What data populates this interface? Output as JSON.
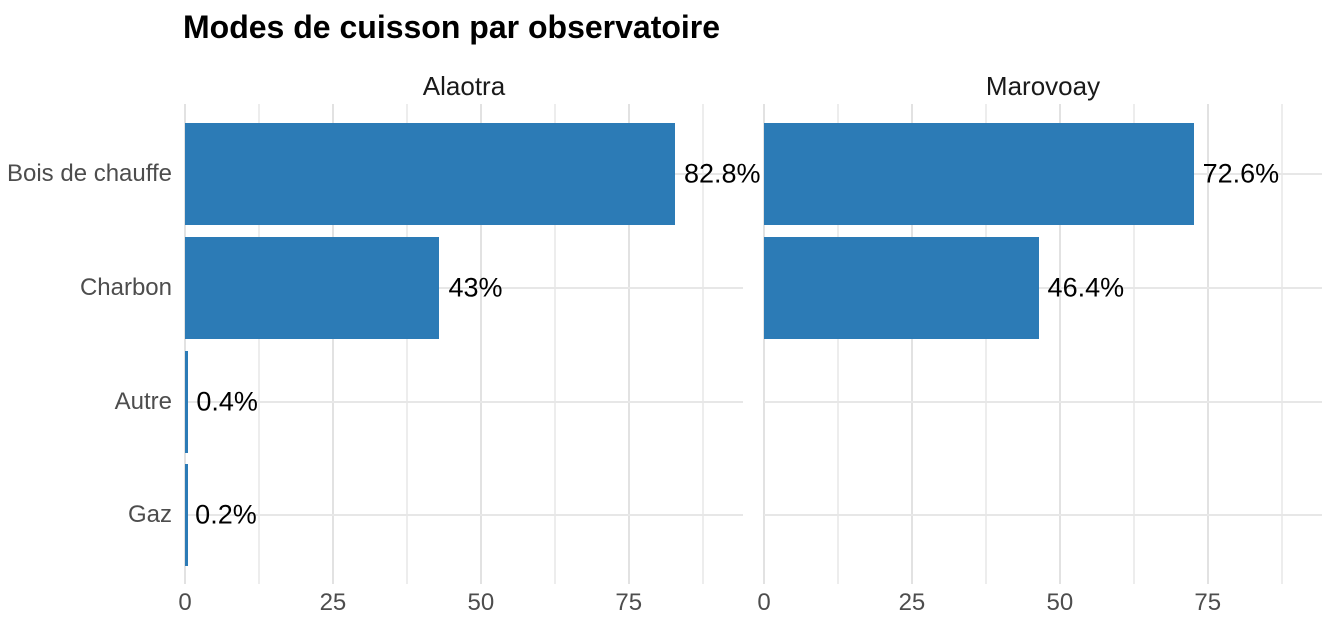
{
  "title": "Modes de cuisson par observatoire",
  "chart_data": {
    "type": "bar",
    "orientation": "horizontal",
    "title": "Modes de cuisson par observatoire",
    "categories": [
      "Bois de chauffe",
      "Charbon",
      "Autre",
      "Gaz"
    ],
    "facets": [
      {
        "name": "Alaotra",
        "values": [
          82.8,
          43,
          0.4,
          0.2
        ],
        "labels": [
          "82.8%",
          "43%",
          "0.4%",
          "0.2%"
        ]
      },
      {
        "name": "Marovoay",
        "values": [
          72.6,
          46.4,
          null,
          null
        ],
        "labels": [
          "72.6%",
          "46.4%",
          null,
          null
        ]
      }
    ],
    "x_ticks": [
      0,
      25,
      50,
      75
    ],
    "x_minor_ticks": [
      12.5,
      37.5,
      62.5,
      87.5
    ],
    "xlim": [
      0,
      94.3
    ],
    "value_unit": "%",
    "grid": true,
    "legend": false,
    "bar_color": "#2C7BB6",
    "label_color": "#000000",
    "axis_text_color": "#4d4d4d",
    "grid_major_color": "#e2e2e2",
    "grid_minor_color": "#ededed"
  }
}
